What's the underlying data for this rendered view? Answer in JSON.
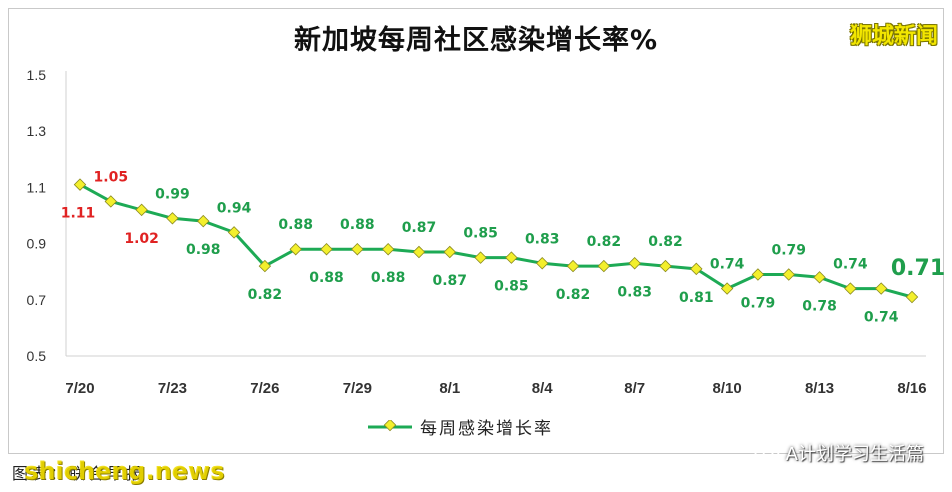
{
  "header": {
    "title": "新加坡每周社区感染增长率%",
    "brand": "狮城新闻"
  },
  "footer": {
    "caption": "图表：联合早报",
    "watermark": "shicheng.news",
    "source": "A计划学习生活篇",
    "source_icon": "wechat-icon"
  },
  "colors": {
    "line": "#1daa55",
    "marker_fill": "#f3ef2c",
    "label_green": "#1f9e4c",
    "label_red": "#e02222",
    "axis_text": "#333333",
    "title": "#111111"
  },
  "chart_data": {
    "type": "line",
    "title": "新加坡每周社区感染增长率%",
    "xlabel": "",
    "ylabel": "",
    "ylim": [
      0.5,
      1.5
    ],
    "yticks": [
      "1.5",
      "1.3",
      "1.1",
      "0.9",
      "0.7",
      "0.5"
    ],
    "ytick_values": [
      1.5,
      1.3,
      1.1,
      0.9,
      0.7,
      0.5
    ],
    "grid": false,
    "legend_position": "bottom-center",
    "x": [
      "7/20",
      "7/21",
      "7/22",
      "7/23",
      "7/24",
      "7/25",
      "7/26",
      "7/27",
      "7/28",
      "7/29",
      "7/30",
      "7/31",
      "8/1",
      "8/2",
      "8/3",
      "8/4",
      "8/5",
      "8/6",
      "8/7",
      "8/8",
      "8/9",
      "8/10",
      "8/11",
      "8/12",
      "8/13",
      "8/14",
      "8/15",
      "8/16"
    ],
    "xtick_labels": [
      "7/20",
      "7/23",
      "7/26",
      "7/29",
      "8/1",
      "8/4",
      "8/7",
      "8/10",
      "8/13",
      "8/16"
    ],
    "xtick_indices": [
      0,
      3,
      6,
      9,
      12,
      15,
      18,
      21,
      24,
      27
    ],
    "series": [
      {
        "name": "每周感染增长率",
        "values": [
          1.11,
          1.05,
          1.02,
          0.99,
          0.98,
          0.94,
          0.82,
          0.88,
          0.88,
          0.88,
          0.88,
          0.87,
          0.87,
          0.85,
          0.85,
          0.83,
          0.82,
          0.82,
          0.83,
          0.82,
          0.81,
          0.74,
          0.79,
          0.79,
          0.78,
          0.74,
          0.74,
          0.71
        ]
      }
    ],
    "data_labels": [
      {
        "i": 0,
        "text": "1.11",
        "pos": "below",
        "color": "red"
      },
      {
        "i": 1,
        "text": "1.05",
        "pos": "above",
        "color": "red"
      },
      {
        "i": 2,
        "text": "1.02",
        "pos": "below",
        "color": "red"
      },
      {
        "i": 3,
        "text": "0.99",
        "pos": "above",
        "color": "green"
      },
      {
        "i": 4,
        "text": "0.98",
        "pos": "below",
        "color": "green"
      },
      {
        "i": 5,
        "text": "0.94",
        "pos": "above",
        "color": "green"
      },
      {
        "i": 6,
        "text": "0.82",
        "pos": "below",
        "color": "green"
      },
      {
        "i": 7,
        "text": "0.88",
        "pos": "above",
        "color": "green"
      },
      {
        "i": 8,
        "text": "0.88",
        "pos": "below",
        "color": "green"
      },
      {
        "i": 9,
        "text": "0.88",
        "pos": "above",
        "color": "green"
      },
      {
        "i": 10,
        "text": "0.88",
        "pos": "below",
        "color": "green"
      },
      {
        "i": 11,
        "text": "0.87",
        "pos": "above",
        "color": "green"
      },
      {
        "i": 12,
        "text": "0.87",
        "pos": "below",
        "color": "green"
      },
      {
        "i": 13,
        "text": "0.85",
        "pos": "above",
        "color": "green"
      },
      {
        "i": 14,
        "text": "0.85",
        "pos": "below",
        "color": "green"
      },
      {
        "i": 15,
        "text": "0.83",
        "pos": "above",
        "color": "green"
      },
      {
        "i": 16,
        "text": "0.82",
        "pos": "below",
        "color": "green"
      },
      {
        "i": 17,
        "text": "0.82",
        "pos": "above",
        "color": "green"
      },
      {
        "i": 18,
        "text": "0.83",
        "pos": "below",
        "color": "green"
      },
      {
        "i": 19,
        "text": "0.82",
        "pos": "above",
        "color": "green"
      },
      {
        "i": 20,
        "text": "0.81",
        "pos": "below",
        "color": "green"
      },
      {
        "i": 21,
        "text": "0.74",
        "pos": "above",
        "color": "green"
      },
      {
        "i": 22,
        "text": "0.79",
        "pos": "below",
        "color": "green"
      },
      {
        "i": 23,
        "text": "0.79",
        "pos": "above",
        "color": "green"
      },
      {
        "i": 24,
        "text": "0.78",
        "pos": "below",
        "color": "green"
      },
      {
        "i": 25,
        "text": "0.74",
        "pos": "above",
        "color": "green"
      },
      {
        "i": 26,
        "text": "0.74",
        "pos": "below",
        "color": "green"
      },
      {
        "i": 27,
        "text": "0.71",
        "pos": "above",
        "color": "green",
        "emphasis": true
      }
    ]
  }
}
